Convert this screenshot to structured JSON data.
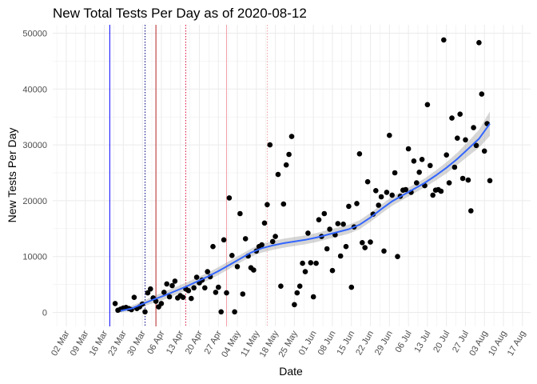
{
  "chart_data": {
    "type": "scatter",
    "title": "New Total Tests Per Day as of 2020-08-12",
    "xlabel": "Date",
    "ylabel": "New Tests Per Day",
    "ylim": [
      -2500,
      51500
    ],
    "yticks": [
      0,
      10000,
      20000,
      30000,
      40000,
      50000
    ],
    "xlim": [
      "2020-02-26",
      "2020-08-20"
    ],
    "xticks": [
      {
        "date": "2020-03-02",
        "label": "02 Mar"
      },
      {
        "date": "2020-03-09",
        "label": "09 Mar"
      },
      {
        "date": "2020-03-16",
        "label": "16 Mar"
      },
      {
        "date": "2020-03-23",
        "label": "23 Mar"
      },
      {
        "date": "2020-03-30",
        "label": "30 Mar"
      },
      {
        "date": "2020-04-06",
        "label": "06 Apr"
      },
      {
        "date": "2020-04-13",
        "label": "13 Apr"
      },
      {
        "date": "2020-04-20",
        "label": "20 Apr"
      },
      {
        "date": "2020-04-27",
        "label": "27 Apr"
      },
      {
        "date": "2020-05-04",
        "label": "04 May"
      },
      {
        "date": "2020-05-11",
        "label": "11 May"
      },
      {
        "date": "2020-05-18",
        "label": "18 May"
      },
      {
        "date": "2020-05-25",
        "label": "25 May"
      },
      {
        "date": "2020-06-01",
        "label": "01 Jun"
      },
      {
        "date": "2020-06-08",
        "label": "08 Jun"
      },
      {
        "date": "2020-06-15",
        "label": "15 Jun"
      },
      {
        "date": "2020-06-22",
        "label": "22 Jun"
      },
      {
        "date": "2020-06-29",
        "label": "29 Jun"
      },
      {
        "date": "2020-07-06",
        "label": "06 Jul"
      },
      {
        "date": "2020-07-13",
        "label": "13 Jul"
      },
      {
        "date": "2020-07-20",
        "label": "20 Jul"
      },
      {
        "date": "2020-07-27",
        "label": "27 Jul"
      },
      {
        "date": "2020-08-03",
        "label": "03 Aug"
      },
      {
        "date": "2020-08-10",
        "label": "10 Aug"
      },
      {
        "date": "2020-08-17",
        "label": "17 Aug"
      }
    ],
    "grid": true,
    "vlines": [
      {
        "date": "2020-03-18",
        "color": "#0000ff",
        "style": "solid"
      },
      {
        "date": "2020-03-31",
        "color": "#000080",
        "style": "dotted"
      },
      {
        "date": "2020-04-04",
        "color": "#b22222",
        "style": "solid"
      },
      {
        "date": "2020-04-15",
        "color": "#dc143c",
        "style": "dotted"
      },
      {
        "date": "2020-04-30",
        "color": "#f4a0a8",
        "style": "solid"
      },
      {
        "date": "2020-05-15",
        "color": "#f4a0a8",
        "style": "dotted"
      }
    ],
    "points": {
      "color": "#000000",
      "data": [
        [
          "2020-03-20",
          1600
        ],
        [
          "2020-03-21",
          400
        ],
        [
          "2020-03-22",
          600
        ],
        [
          "2020-03-23",
          800
        ],
        [
          "2020-03-24",
          900
        ],
        [
          "2020-03-25",
          700
        ],
        [
          "2020-03-26",
          500
        ],
        [
          "2020-03-27",
          2700
        ],
        [
          "2020-03-28",
          700
        ],
        [
          "2020-03-29",
          1000
        ],
        [
          "2020-03-30",
          1500
        ],
        [
          "2020-03-31",
          100
        ],
        [
          "2020-04-01",
          3500
        ],
        [
          "2020-04-02",
          4200
        ],
        [
          "2020-04-03",
          2600
        ],
        [
          "2020-04-04",
          2000
        ],
        [
          "2020-04-05",
          1000
        ],
        [
          "2020-04-06",
          1600
        ],
        [
          "2020-04-07",
          3600
        ],
        [
          "2020-04-08",
          5100
        ],
        [
          "2020-04-09",
          2800
        ],
        [
          "2020-04-10",
          4800
        ],
        [
          "2020-04-11",
          5600
        ],
        [
          "2020-04-12",
          2600
        ],
        [
          "2020-04-13",
          3000
        ],
        [
          "2020-04-14",
          2700
        ],
        [
          "2020-04-15",
          4200
        ],
        [
          "2020-04-16",
          3900
        ],
        [
          "2020-04-17",
          2500
        ],
        [
          "2020-04-18",
          4400
        ],
        [
          "2020-04-19",
          6300
        ],
        [
          "2020-04-20",
          5300
        ],
        [
          "2020-04-21",
          5800
        ],
        [
          "2020-04-22",
          4400
        ],
        [
          "2020-04-23",
          7300
        ],
        [
          "2020-04-24",
          6400
        ],
        [
          "2020-04-25",
          11800
        ],
        [
          "2020-04-26",
          3600
        ],
        [
          "2020-04-27",
          4500
        ],
        [
          "2020-04-28",
          100
        ],
        [
          "2020-04-29",
          13000
        ],
        [
          "2020-04-30",
          3500
        ],
        [
          "2020-05-01",
          20500
        ],
        [
          "2020-05-02",
          10200
        ],
        [
          "2020-05-03",
          100
        ],
        [
          "2020-05-04",
          8200
        ],
        [
          "2020-05-05",
          17700
        ],
        [
          "2020-05-06",
          3300
        ],
        [
          "2020-05-07",
          13200
        ],
        [
          "2020-05-08",
          10100
        ],
        [
          "2020-05-09",
          8000
        ],
        [
          "2020-05-10",
          7600
        ],
        [
          "2020-05-11",
          11000
        ],
        [
          "2020-05-12",
          11800
        ],
        [
          "2020-05-13",
          12100
        ],
        [
          "2020-05-14",
          16000
        ],
        [
          "2020-05-15",
          19300
        ],
        [
          "2020-05-16",
          30000
        ],
        [
          "2020-05-17",
          12700
        ],
        [
          "2020-05-18",
          13600
        ],
        [
          "2020-05-19",
          24700
        ],
        [
          "2020-05-20",
          4700
        ],
        [
          "2020-05-21",
          19400
        ],
        [
          "2020-05-22",
          26400
        ],
        [
          "2020-05-23",
          28300
        ],
        [
          "2020-05-24",
          31500
        ],
        [
          "2020-05-25",
          1400
        ],
        [
          "2020-05-26",
          3500
        ],
        [
          "2020-05-27",
          4700
        ],
        [
          "2020-05-28",
          8800
        ],
        [
          "2020-05-29",
          7300
        ],
        [
          "2020-05-30",
          14200
        ],
        [
          "2020-05-31",
          8900
        ],
        [
          "2020-06-01",
          2800
        ],
        [
          "2020-06-02",
          8800
        ],
        [
          "2020-06-03",
          16600
        ],
        [
          "2020-06-04",
          13600
        ],
        [
          "2020-06-05",
          17700
        ],
        [
          "2020-06-06",
          11400
        ],
        [
          "2020-06-07",
          14900
        ],
        [
          "2020-06-08",
          7500
        ],
        [
          "2020-06-09",
          13900
        ],
        [
          "2020-06-10",
          15900
        ],
        [
          "2020-06-11",
          10100
        ],
        [
          "2020-06-12",
          15800
        ],
        [
          "2020-06-13",
          11800
        ],
        [
          "2020-06-14",
          19000
        ],
        [
          "2020-06-15",
          4500
        ],
        [
          "2020-06-16",
          15300
        ],
        [
          "2020-06-17",
          19500
        ],
        [
          "2020-06-18",
          28400
        ],
        [
          "2020-06-19",
          12500
        ],
        [
          "2020-06-20",
          11600
        ],
        [
          "2020-06-21",
          23400
        ],
        [
          "2020-06-22",
          12600
        ],
        [
          "2020-06-23",
          17600
        ],
        [
          "2020-06-24",
          21800
        ],
        [
          "2020-06-25",
          19200
        ],
        [
          "2020-06-26",
          20700
        ],
        [
          "2020-06-27",
          11000
        ],
        [
          "2020-06-28",
          21500
        ],
        [
          "2020-06-29",
          31700
        ],
        [
          "2020-06-30",
          21000
        ],
        [
          "2020-07-01",
          25000
        ],
        [
          "2020-07-02",
          10000
        ],
        [
          "2020-07-03",
          20800
        ],
        [
          "2020-07-04",
          21900
        ],
        [
          "2020-07-05",
          22000
        ],
        [
          "2020-07-06",
          29300
        ],
        [
          "2020-07-07",
          21500
        ],
        [
          "2020-07-08",
          27100
        ],
        [
          "2020-07-09",
          23200
        ],
        [
          "2020-07-10",
          25100
        ],
        [
          "2020-07-11",
          27400
        ],
        [
          "2020-07-12",
          22700
        ],
        [
          "2020-07-13",
          37200
        ],
        [
          "2020-07-14",
          26300
        ],
        [
          "2020-07-15",
          21000
        ],
        [
          "2020-07-16",
          21900
        ],
        [
          "2020-07-17",
          22000
        ],
        [
          "2020-07-18",
          21700
        ],
        [
          "2020-07-19",
          48800
        ],
        [
          "2020-07-20",
          28200
        ],
        [
          "2020-07-21",
          23200
        ],
        [
          "2020-07-22",
          34800
        ],
        [
          "2020-07-23",
          26000
        ],
        [
          "2020-07-24",
          31200
        ],
        [
          "2020-07-25",
          35500
        ],
        [
          "2020-07-26",
          24000
        ],
        [
          "2020-07-27",
          30900
        ],
        [
          "2020-07-28",
          23700
        ],
        [
          "2020-07-29",
          18200
        ],
        [
          "2020-07-30",
          33100
        ],
        [
          "2020-07-31",
          29900
        ],
        [
          "2020-08-01",
          48300
        ],
        [
          "2020-08-02",
          39100
        ],
        [
          "2020-08-03",
          28900
        ],
        [
          "2020-08-04",
          33800
        ],
        [
          "2020-08-05",
          23600
        ]
      ]
    },
    "smooth": {
      "color": "#3366ff",
      "band_color": "#999999",
      "data": [
        [
          "2020-03-22",
          300,
          0,
          700
        ],
        [
          "2020-03-26",
          700,
          300,
          1200
        ],
        [
          "2020-03-30",
          1500,
          1000,
          2000
        ],
        [
          "2020-04-03",
          2300,
          1700,
          2900
        ],
        [
          "2020-04-07",
          3000,
          2300,
          3700
        ],
        [
          "2020-04-11",
          3800,
          3100,
          4500
        ],
        [
          "2020-04-15",
          4600,
          3900,
          5300
        ],
        [
          "2020-04-19",
          5500,
          4800,
          6200
        ],
        [
          "2020-04-23",
          6400,
          5700,
          7100
        ],
        [
          "2020-04-27",
          7400,
          6700,
          8100
        ],
        [
          "2020-05-01",
          8500,
          7800,
          9200
        ],
        [
          "2020-05-05",
          9600,
          8900,
          10300
        ],
        [
          "2020-05-09",
          10700,
          10000,
          11400
        ],
        [
          "2020-05-13",
          11500,
          10700,
          12300
        ],
        [
          "2020-05-17",
          12000,
          11200,
          12800
        ],
        [
          "2020-05-21",
          12400,
          11600,
          13200
        ],
        [
          "2020-05-25",
          12700,
          11900,
          13500
        ],
        [
          "2020-05-29",
          13000,
          12200,
          13800
        ],
        [
          "2020-06-02",
          13400,
          12600,
          14200
        ],
        [
          "2020-06-06",
          13900,
          13100,
          14700
        ],
        [
          "2020-06-10",
          14400,
          13600,
          15200
        ],
        [
          "2020-06-14",
          14900,
          14100,
          15700
        ],
        [
          "2020-06-18",
          15700,
          14900,
          16500
        ],
        [
          "2020-06-22",
          17000,
          16200,
          17800
        ],
        [
          "2020-06-26",
          18500,
          17700,
          19300
        ],
        [
          "2020-06-30",
          19900,
          19100,
          20700
        ],
        [
          "2020-07-04",
          21000,
          20200,
          21800
        ],
        [
          "2020-07-08",
          22100,
          21300,
          22900
        ],
        [
          "2020-07-12",
          23200,
          22400,
          24000
        ],
        [
          "2020-07-16",
          24500,
          23600,
          25400
        ],
        [
          "2020-07-20",
          25900,
          24900,
          26900
        ],
        [
          "2020-07-24",
          27500,
          26400,
          28600
        ],
        [
          "2020-07-28",
          29300,
          28000,
          30600
        ],
        [
          "2020-08-01",
          31100,
          29500,
          32700
        ],
        [
          "2020-08-05",
          33800,
          31600,
          36000
        ]
      ]
    }
  }
}
